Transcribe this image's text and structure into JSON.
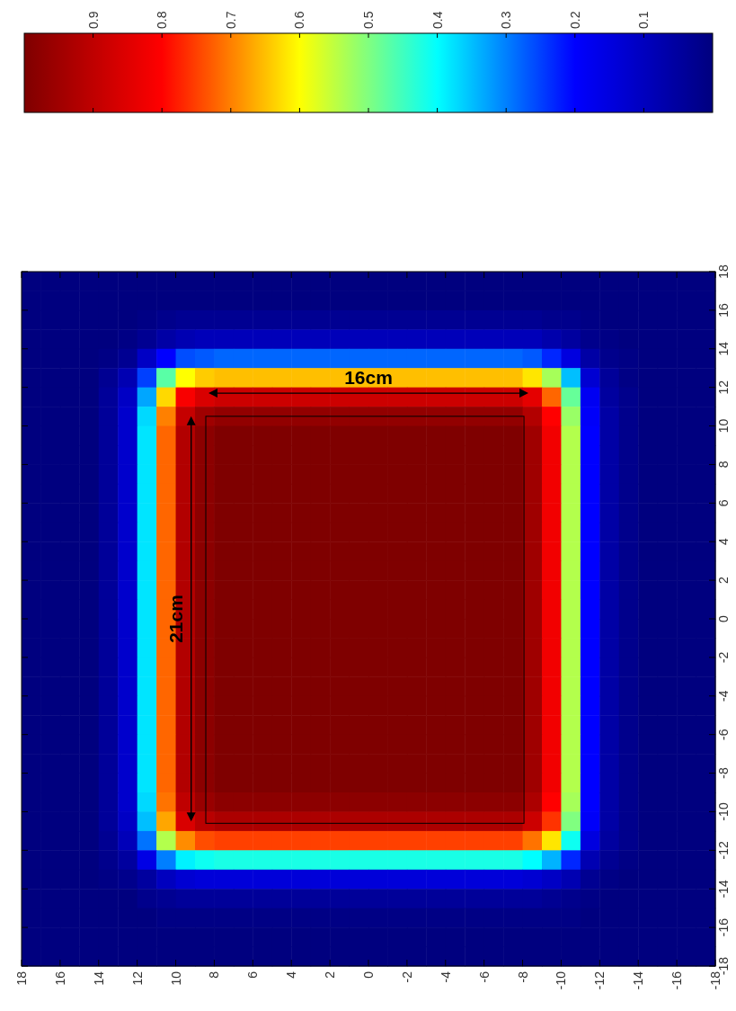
{
  "chart_data": {
    "type": "heatmap",
    "xlim": [
      18,
      -18
    ],
    "xticks": [
      18,
      16,
      14,
      12,
      10,
      8,
      6,
      4,
      2,
      0,
      -2,
      -4,
      -6,
      -8,
      -10,
      -12,
      -14,
      -16,
      -18
    ],
    "ylim": [
      -18,
      18
    ],
    "yticks": [
      -18,
      -16,
      -14,
      -12,
      -10,
      -8,
      -6,
      -4,
      -2,
      0,
      2,
      4,
      6,
      8,
      10,
      12,
      14,
      16,
      18
    ],
    "clim": [
      0,
      1
    ],
    "cticks": [
      0.1,
      0.2,
      0.3,
      0.4,
      0.5,
      0.6,
      0.7,
      0.8,
      0.9
    ],
    "annotations": [
      "16cm",
      "21cm"
    ],
    "cells": [
      [
        0,
        0,
        0,
        0,
        0,
        0,
        0,
        0,
        0,
        0,
        0,
        0,
        0,
        0,
        0,
        0,
        0,
        0,
        0,
        0,
        0,
        0,
        0,
        0,
        0,
        0,
        0,
        0,
        0,
        0,
        0,
        0,
        0,
        0,
        0,
        0
      ],
      [
        0,
        0,
        0,
        0,
        0,
        0,
        0,
        0,
        0,
        0,
        0,
        0,
        0,
        0,
        0,
        0,
        0,
        0,
        0,
        0,
        0,
        0,
        0,
        0,
        0,
        0,
        0,
        0,
        0,
        0,
        0,
        0,
        0,
        0,
        0,
        0
      ],
      [
        0,
        0,
        0,
        0,
        0,
        0,
        0.01,
        0.02,
        0.03,
        0.03,
        0.03,
        0.03,
        0.03,
        0.03,
        0.03,
        0.03,
        0.03,
        0.03,
        0.03,
        0.03,
        0.03,
        0.03,
        0.03,
        0.03,
        0.03,
        0.03,
        0.03,
        0.02,
        0.02,
        0.01,
        0,
        0,
        0,
        0,
        0,
        0
      ],
      [
        0,
        0,
        0,
        0,
        0,
        0.01,
        0.03,
        0.06,
        0.08,
        0.09,
        0.09,
        0.09,
        0.09,
        0.09,
        0.09,
        0.09,
        0.09,
        0.09,
        0.09,
        0.09,
        0.09,
        0.09,
        0.09,
        0.09,
        0.09,
        0.09,
        0.09,
        0.07,
        0.05,
        0.02,
        0.01,
        0,
        0,
        0,
        0,
        0
      ],
      [
        0,
        0,
        0,
        0,
        0.01,
        0.03,
        0.11,
        0.2,
        0.26,
        0.27,
        0.28,
        0.28,
        0.28,
        0.28,
        0.28,
        0.28,
        0.28,
        0.28,
        0.28,
        0.28,
        0.28,
        0.28,
        0.28,
        0.28,
        0.28,
        0.28,
        0.27,
        0.23,
        0.15,
        0.06,
        0.02,
        0.01,
        0,
        0,
        0,
        0
      ],
      [
        0,
        0,
        0,
        0,
        0.03,
        0.08,
        0.25,
        0.47,
        0.6,
        0.64,
        0.65,
        0.65,
        0.65,
        0.65,
        0.65,
        0.65,
        0.65,
        0.65,
        0.65,
        0.65,
        0.65,
        0.65,
        0.65,
        0.65,
        0.65,
        0.65,
        0.62,
        0.53,
        0.35,
        0.13,
        0.04,
        0.01,
        0,
        0,
        0,
        0
      ],
      [
        0,
        0,
        0,
        0,
        0.04,
        0.11,
        0.33,
        0.63,
        0.81,
        0.86,
        0.88,
        0.88,
        0.88,
        0.88,
        0.88,
        0.88,
        0.88,
        0.88,
        0.88,
        0.88,
        0.88,
        0.88,
        0.88,
        0.88,
        0.88,
        0.88,
        0.84,
        0.72,
        0.48,
        0.18,
        0.05,
        0.02,
        0,
        0,
        0,
        0
      ],
      [
        0,
        0,
        0,
        0,
        0.04,
        0.12,
        0.37,
        0.7,
        0.89,
        0.95,
        0.97,
        0.97,
        0.97,
        0.97,
        0.97,
        0.97,
        0.97,
        0.97,
        0.97,
        0.97,
        0.97,
        0.97,
        0.97,
        0.97,
        0.97,
        0.97,
        0.92,
        0.8,
        0.52,
        0.19,
        0.06,
        0.02,
        0,
        0,
        0,
        0
      ],
      [
        0,
        0,
        0,
        0,
        0.04,
        0.12,
        0.38,
        0.72,
        0.92,
        0.98,
        1,
        1,
        1,
        1,
        1,
        1,
        1,
        1,
        1,
        1,
        1,
        1,
        1,
        1,
        1,
        1,
        0.95,
        0.82,
        0.54,
        0.2,
        0.06,
        0.02,
        0,
        0,
        0,
        0
      ],
      [
        0,
        0,
        0,
        0,
        0.04,
        0.12,
        0.38,
        0.72,
        0.92,
        0.98,
        1,
        1,
        1,
        1,
        1,
        1,
        1,
        1,
        1,
        1,
        1,
        1,
        1,
        1,
        1,
        1,
        0.95,
        0.82,
        0.54,
        0.2,
        0.06,
        0.02,
        0,
        0,
        0,
        0
      ],
      [
        0,
        0,
        0,
        0,
        0.04,
        0.12,
        0.38,
        0.72,
        0.92,
        0.98,
        1,
        1,
        1,
        1,
        1,
        1,
        1,
        1,
        1,
        1,
        1,
        1,
        1,
        1,
        1,
        1,
        0.95,
        0.82,
        0.54,
        0.2,
        0.06,
        0.02,
        0,
        0,
        0,
        0
      ],
      [
        0,
        0,
        0,
        0,
        0.04,
        0.12,
        0.38,
        0.72,
        0.92,
        0.98,
        1,
        1,
        1,
        1,
        1,
        1,
        1,
        1,
        1,
        1,
        1,
        1,
        1,
        1,
        1,
        1,
        0.95,
        0.82,
        0.54,
        0.2,
        0.06,
        0.02,
        0,
        0,
        0,
        0
      ],
      [
        0,
        0,
        0,
        0,
        0.04,
        0.12,
        0.38,
        0.72,
        0.92,
        0.98,
        1,
        1,
        1,
        1,
        1,
        1,
        1,
        1,
        1,
        1,
        1,
        1,
        1,
        1,
        1,
        1,
        0.95,
        0.82,
        0.54,
        0.2,
        0.06,
        0.02,
        0,
        0,
        0,
        0
      ],
      [
        0,
        0,
        0,
        0,
        0.04,
        0.12,
        0.38,
        0.72,
        0.92,
        0.98,
        1,
        1,
        1,
        1,
        1,
        1,
        1,
        1,
        1,
        1,
        1,
        1,
        1,
        1,
        1,
        1,
        0.95,
        0.82,
        0.54,
        0.2,
        0.06,
        0.02,
        0,
        0,
        0,
        0
      ],
      [
        0,
        0,
        0,
        0,
        0.04,
        0.12,
        0.38,
        0.72,
        0.92,
        0.98,
        1,
        1,
        1,
        1,
        1,
        1,
        1,
        1,
        1,
        1,
        1,
        1,
        1,
        1,
        1,
        1,
        0.95,
        0.82,
        0.54,
        0.2,
        0.06,
        0.02,
        0,
        0,
        0,
        0
      ],
      [
        0,
        0,
        0,
        0,
        0.04,
        0.12,
        0.38,
        0.72,
        0.92,
        0.98,
        1,
        1,
        1,
        1,
        1,
        1,
        1,
        1,
        1,
        1,
        1,
        1,
        1,
        1,
        1,
        1,
        0.95,
        0.82,
        0.54,
        0.2,
        0.06,
        0.02,
        0,
        0,
        0,
        0
      ],
      [
        0,
        0,
        0,
        0,
        0.04,
        0.12,
        0.38,
        0.72,
        0.92,
        0.98,
        1,
        1,
        1,
        1,
        1,
        1,
        1,
        1,
        1,
        1,
        1,
        1,
        1,
        1,
        1,
        1,
        0.95,
        0.82,
        0.54,
        0.2,
        0.06,
        0.02,
        0,
        0,
        0,
        0
      ],
      [
        0,
        0,
        0,
        0,
        0.04,
        0.12,
        0.38,
        0.72,
        0.92,
        0.98,
        1,
        1,
        1,
        1,
        1,
        1,
        1,
        1,
        1,
        1,
        1,
        1,
        1,
        1,
        1,
        1,
        0.95,
        0.82,
        0.54,
        0.2,
        0.06,
        0.02,
        0,
        0,
        0,
        0
      ],
      [
        0,
        0,
        0,
        0,
        0.04,
        0.12,
        0.38,
        0.72,
        0.92,
        0.98,
        1,
        1,
        1,
        1,
        1,
        1,
        1,
        1,
        1,
        1,
        1,
        1,
        1,
        1,
        1,
        1,
        0.95,
        0.82,
        0.54,
        0.2,
        0.06,
        0.02,
        0,
        0,
        0,
        0
      ],
      [
        0,
        0,
        0,
        0,
        0.04,
        0.12,
        0.38,
        0.72,
        0.92,
        0.98,
        1,
        1,
        1,
        1,
        1,
        1,
        1,
        1,
        1,
        1,
        1,
        1,
        1,
        1,
        1,
        1,
        0.95,
        0.82,
        0.54,
        0.2,
        0.06,
        0.02,
        0,
        0,
        0,
        0
      ],
      [
        0,
        0,
        0,
        0,
        0.04,
        0.12,
        0.38,
        0.72,
        0.92,
        0.98,
        1,
        1,
        1,
        1,
        1,
        1,
        1,
        1,
        1,
        1,
        1,
        1,
        1,
        1,
        1,
        1,
        0.95,
        0.82,
        0.54,
        0.2,
        0.06,
        0.02,
        0,
        0,
        0,
        0
      ],
      [
        0,
        0,
        0,
        0,
        0.04,
        0.12,
        0.38,
        0.72,
        0.92,
        0.98,
        1,
        1,
        1,
        1,
        1,
        1,
        1,
        1,
        1,
        1,
        1,
        1,
        1,
        1,
        1,
        1,
        0.95,
        0.82,
        0.54,
        0.2,
        0.06,
        0.02,
        0,
        0,
        0,
        0
      ],
      [
        0,
        0,
        0,
        0,
        0.04,
        0.12,
        0.38,
        0.72,
        0.92,
        0.98,
        1,
        1,
        1,
        1,
        1,
        1,
        1,
        1,
        1,
        1,
        1,
        1,
        1,
        1,
        1,
        1,
        0.95,
        0.82,
        0.54,
        0.2,
        0.06,
        0.02,
        0,
        0,
        0,
        0
      ],
      [
        0,
        0,
        0,
        0,
        0.04,
        0.12,
        0.38,
        0.72,
        0.92,
        0.98,
        1,
        1,
        1,
        1,
        1,
        1,
        1,
        1,
        1,
        1,
        1,
        1,
        1,
        1,
        1,
        1,
        0.95,
        0.82,
        0.54,
        0.2,
        0.06,
        0.02,
        0,
        0,
        0,
        0
      ],
      [
        0,
        0,
        0,
        0,
        0.04,
        0.12,
        0.38,
        0.72,
        0.92,
        0.98,
        1,
        1,
        1,
        1,
        1,
        1,
        1,
        1,
        1,
        1,
        1,
        1,
        1,
        1,
        1,
        1,
        0.95,
        0.82,
        0.54,
        0.2,
        0.06,
        0.02,
        0,
        0,
        0,
        0
      ],
      [
        0,
        0,
        0,
        0,
        0.04,
        0.12,
        0.38,
        0.72,
        0.92,
        0.98,
        1,
        1,
        1,
        1,
        1,
        1,
        1,
        1,
        1,
        1,
        1,
        1,
        1,
        1,
        1,
        1,
        0.95,
        0.82,
        0.54,
        0.2,
        0.06,
        0.02,
        0,
        0,
        0,
        0
      ],
      [
        0,
        0,
        0,
        0,
        0.04,
        0.12,
        0.38,
        0.72,
        0.92,
        0.98,
        1,
        1,
        1,
        1,
        1,
        1,
        1,
        1,
        1,
        1,
        1,
        1,
        1,
        1,
        1,
        1,
        0.95,
        0.82,
        0.54,
        0.2,
        0.06,
        0.02,
        0,
        0,
        0,
        0
      ],
      [
        0,
        0,
        0,
        0,
        0.04,
        0.12,
        0.37,
        0.71,
        0.9,
        0.96,
        0.98,
        0.98,
        0.98,
        0.98,
        0.98,
        0.98,
        0.98,
        0.98,
        0.98,
        0.98,
        0.98,
        0.98,
        0.98,
        0.98,
        0.98,
        0.98,
        0.93,
        0.8,
        0.53,
        0.2,
        0.06,
        0.02,
        0,
        0,
        0,
        0
      ],
      [
        0,
        0,
        0,
        0,
        0.04,
        0.11,
        0.35,
        0.67,
        0.86,
        0.91,
        0.93,
        0.93,
        0.93,
        0.93,
        0.93,
        0.93,
        0.93,
        0.93,
        0.93,
        0.93,
        0.93,
        0.93,
        0.93,
        0.93,
        0.93,
        0.93,
        0.88,
        0.76,
        0.5,
        0.19,
        0.06,
        0.02,
        0,
        0,
        0,
        0
      ],
      [
        0,
        0,
        0,
        0,
        0.03,
        0.09,
        0.29,
        0.54,
        0.69,
        0.74,
        0.75,
        0.75,
        0.75,
        0.75,
        0.75,
        0.75,
        0.75,
        0.75,
        0.75,
        0.75,
        0.75,
        0.75,
        0.75,
        0.75,
        0.75,
        0.75,
        0.71,
        0.62,
        0.41,
        0.15,
        0.05,
        0.02,
        0,
        0,
        0,
        0
      ],
      [
        0,
        0,
        0,
        0,
        0.02,
        0.05,
        0.16,
        0.3,
        0.39,
        0.41,
        0.42,
        0.42,
        0.42,
        0.42,
        0.42,
        0.42,
        0.42,
        0.42,
        0.42,
        0.42,
        0.42,
        0.42,
        0.42,
        0.42,
        0.42,
        0.42,
        0.4,
        0.34,
        0.23,
        0.08,
        0.03,
        0.01,
        0,
        0,
        0,
        0
      ],
      [
        0,
        0,
        0,
        0,
        0.01,
        0.02,
        0.05,
        0.1,
        0.13,
        0.14,
        0.14,
        0.14,
        0.14,
        0.14,
        0.14,
        0.14,
        0.14,
        0.14,
        0.14,
        0.14,
        0.14,
        0.14,
        0.14,
        0.14,
        0.14,
        0.14,
        0.13,
        0.11,
        0.08,
        0.03,
        0.01,
        0,
        0,
        0,
        0,
        0
      ],
      [
        0,
        0,
        0,
        0,
        0,
        0,
        0.02,
        0.03,
        0.04,
        0.04,
        0.04,
        0.04,
        0.04,
        0.04,
        0.04,
        0.04,
        0.04,
        0.04,
        0.04,
        0.04,
        0.04,
        0.04,
        0.04,
        0.04,
        0.04,
        0.04,
        0.04,
        0.03,
        0.02,
        0.01,
        0,
        0,
        0,
        0,
        0,
        0
      ],
      [
        0,
        0,
        0,
        0,
        0,
        0,
        0,
        0.01,
        0.01,
        0.01,
        0.01,
        0.01,
        0.01,
        0.01,
        0.01,
        0.01,
        0.01,
        0.01,
        0.01,
        0.01,
        0.01,
        0.01,
        0.01,
        0.01,
        0.01,
        0.01,
        0.01,
        0.01,
        0.01,
        0,
        0,
        0,
        0,
        0,
        0,
        0
      ],
      [
        0,
        0,
        0,
        0,
        0,
        0,
        0,
        0,
        0,
        0,
        0,
        0,
        0,
        0,
        0,
        0,
        0,
        0,
        0,
        0,
        0,
        0,
        0,
        0,
        0,
        0,
        0,
        0,
        0,
        0,
        0,
        0,
        0,
        0,
        0,
        0
      ],
      [
        0,
        0,
        0,
        0,
        0,
        0,
        0,
        0,
        0,
        0,
        0,
        0,
        0,
        0,
        0,
        0,
        0,
        0,
        0,
        0,
        0,
        0,
        0,
        0,
        0,
        0,
        0,
        0,
        0,
        0,
        0,
        0,
        0,
        0,
        0,
        0
      ]
    ]
  }
}
